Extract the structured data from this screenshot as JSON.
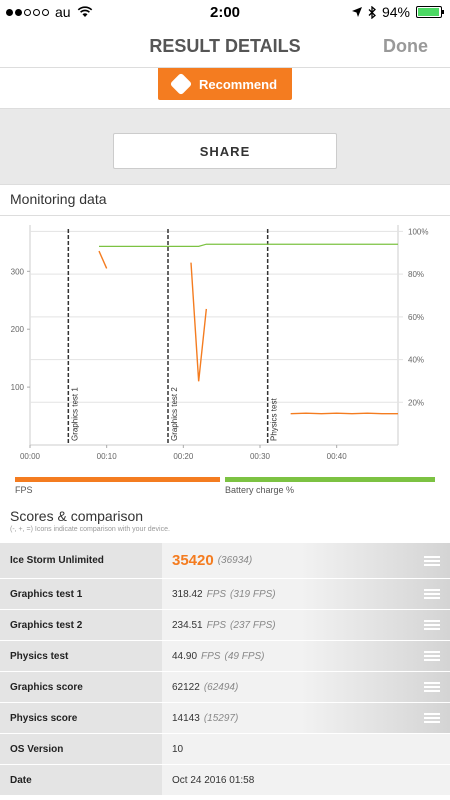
{
  "status_bar": {
    "carrier": "au",
    "time": "2:00",
    "battery_percent": "94%",
    "signal_bars_filled": 2,
    "signal_bars_total": 5
  },
  "nav": {
    "title": "RESULT DETAILS",
    "done_label": "Done"
  },
  "recommend": {
    "label": "Recommend"
  },
  "share": {
    "label": "SHARE"
  },
  "monitoring": {
    "title": "Monitoring data",
    "fps_legend": "FPS",
    "battery_legend": "Battery charge %"
  },
  "chart_data": {
    "type": "line",
    "x_ticks": [
      "00:00",
      "00:10",
      "00:20",
      "00:30",
      "00:40"
    ],
    "y_left_ticks": [
      "300",
      "200",
      "100"
    ],
    "y_right_ticks": [
      "100%",
      "80%",
      "60%",
      "40%",
      "20%"
    ],
    "markers": [
      {
        "label": "Graphics test 1",
        "x_seconds": 5
      },
      {
        "label": "Graphics test 2",
        "x_seconds": 18
      },
      {
        "label": "Physics test",
        "x_seconds": 31
      }
    ],
    "series": [
      {
        "name": "FPS",
        "color": "#f47c20",
        "axis": "left",
        "points": [
          [
            9,
            335
          ],
          [
            10,
            305
          ],
          [
            21,
            315
          ],
          [
            22,
            110
          ],
          [
            23,
            235
          ],
          [
            34,
            54
          ],
          [
            36,
            55
          ],
          [
            38,
            54
          ],
          [
            40,
            55
          ],
          [
            42,
            54
          ],
          [
            44,
            55
          ],
          [
            46,
            54
          ],
          [
            48,
            54
          ]
        ]
      },
      {
        "name": "Battery charge %",
        "color": "#7cc242",
        "axis": "right",
        "points": [
          [
            9,
            93
          ],
          [
            22,
            93
          ],
          [
            23,
            94
          ],
          [
            48,
            94
          ]
        ]
      }
    ],
    "y_left_range": [
      0,
      380
    ],
    "y_right_range": [
      0,
      103
    ],
    "x_range": [
      0,
      48
    ]
  },
  "scores": {
    "title": "Scores & comparison",
    "subtitle": "(-, +, =) Icons indicate comparison with your device.",
    "rows": [
      {
        "label": "Ice Storm Unlimited",
        "value": "35420",
        "unit": "",
        "ref": "(36934)",
        "highlight": true,
        "expandable": true
      },
      {
        "label": "Graphics test 1",
        "value": "318.42",
        "unit": "FPS",
        "ref": "(319 FPS)",
        "highlight": false,
        "expandable": true
      },
      {
        "label": "Graphics test 2",
        "value": "234.51",
        "unit": "FPS",
        "ref": "(237 FPS)",
        "highlight": false,
        "expandable": true
      },
      {
        "label": "Physics test",
        "value": "44.90",
        "unit": "FPS",
        "ref": "(49 FPS)",
        "highlight": false,
        "expandable": true
      },
      {
        "label": "Graphics score",
        "value": "62122",
        "unit": "",
        "ref": "(62494)",
        "highlight": false,
        "expandable": true
      },
      {
        "label": "Physics score",
        "value": "14143",
        "unit": "",
        "ref": "(15297)",
        "highlight": false,
        "expandable": true
      },
      {
        "label": "OS Version",
        "value": "10",
        "unit": "",
        "ref": "",
        "highlight": false,
        "expandable": false
      },
      {
        "label": "Date",
        "value": "Oct 24 2016 01:58",
        "unit": "",
        "ref": "",
        "highlight": false,
        "expandable": false
      }
    ]
  }
}
